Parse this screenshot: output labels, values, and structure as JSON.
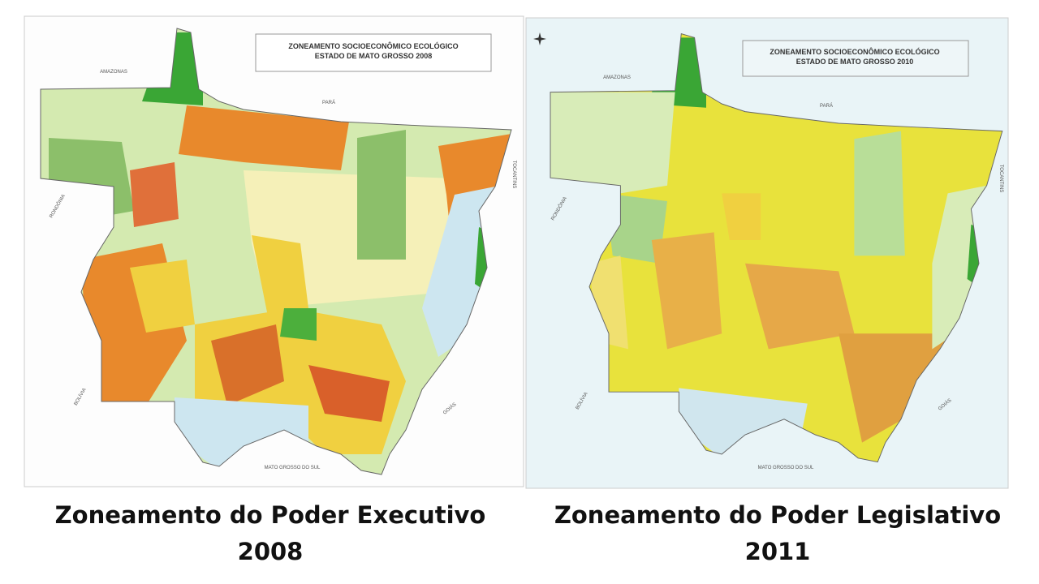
{
  "maps": [
    {
      "title_lines": [
        "ZONEAMENTO SOCIOECONÔMICO ECOLÓGICO",
        "ESTADO DE MATO GROSSO 2008"
      ],
      "neighbors": [
        "AMAZONAS",
        "PARÁ",
        "TOCANTINS",
        "RONDÔNIA",
        "BOLÍVIA",
        "GOIÁS",
        "MATO GROSSO DO SUL"
      ],
      "caption": [
        "Zoneamento do Poder Executivo",
        "2008"
      ]
    },
    {
      "title_lines": [
        "ZONEAMENTO SOCIOECONÔMICO ECOLÓGICO",
        "ESTADO DE MATO GROSSO 2010"
      ],
      "neighbors": [
        "AMAZONAS",
        "PARÁ",
        "TOCANTINS",
        "RONDÔNIA",
        "BOLÍVIA",
        "GOIÁS",
        "MATO GROSSO DO SUL"
      ],
      "caption": [
        "Zoneamento do Poder Legislativo",
        "2011"
      ]
    }
  ]
}
